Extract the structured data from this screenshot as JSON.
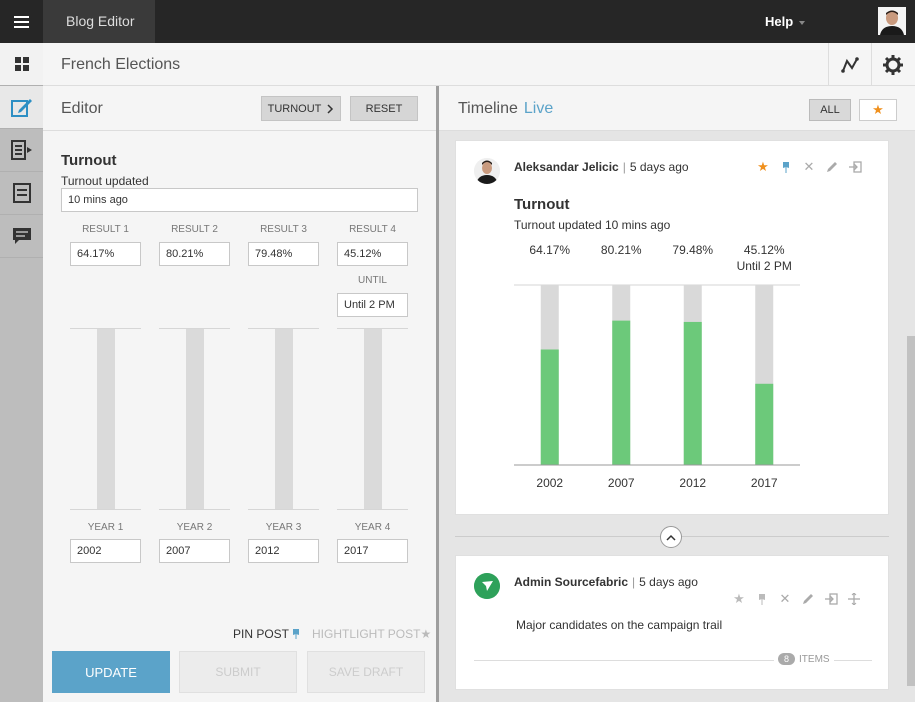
{
  "app": {
    "title": "Blog Editor",
    "help_label": "Help"
  },
  "blog": {
    "title": "French Elections"
  },
  "editor": {
    "title": "Editor",
    "turnout_button": "TURNOUT",
    "reset_button": "RESET",
    "section_title": "Turnout",
    "subtitle": "Turnout updated",
    "time_value": "10 mins ago",
    "results": [
      {
        "label": "RESULT 1",
        "value": "64.17%"
      },
      {
        "label": "RESULT 2",
        "value": "80.21%"
      },
      {
        "label": "RESULT 3",
        "value": "79.48%"
      },
      {
        "label": "RESULT 4",
        "value": "45.12%"
      }
    ],
    "until_label": "UNTIL",
    "until_value": "Until 2 PM",
    "years": [
      {
        "label": "YEAR 1",
        "value": "2002"
      },
      {
        "label": "YEAR 2",
        "value": "2007"
      },
      {
        "label": "YEAR 3",
        "value": "2012"
      },
      {
        "label": "YEAR 4",
        "value": "2017"
      }
    ],
    "pin_label": "PIN POST",
    "highlight_label": "HIGHTLIGHT POST",
    "update_button": "UPDATE",
    "submit_button": "SUBMIT",
    "save_draft_button": "SAVE DRAFT"
  },
  "timeline": {
    "title": "Timeline",
    "live_label": "Live",
    "filter_all": "ALL",
    "posts": [
      {
        "author": "Aleksandar Jelicic",
        "time": "5 days ago",
        "title": "Turnout",
        "subtitle": "Turnout updated 10 mins ago"
      },
      {
        "author": "Admin Sourcefabric",
        "time": "5 days ago",
        "text": "Major candidates on the campaign trail",
        "items_count": "8",
        "items_label": "ITEMS"
      }
    ]
  },
  "chart_data": {
    "type": "bar",
    "categories": [
      "2002",
      "2007",
      "2012",
      "2017"
    ],
    "values": [
      64.17,
      80.21,
      79.48,
      45.12
    ],
    "value_labels": [
      "64.17%",
      "80.21%",
      "79.48%",
      "45.12%"
    ],
    "extra_label": "Until 2 PM",
    "ylim": [
      0,
      100
    ],
    "colors": {
      "fill": "#6cc97a",
      "track": "#d9d9d9"
    }
  },
  "colors": {
    "accent": "#5ba3c9",
    "star": "#f0901d",
    "pin": "#5ba3c9",
    "bar": "#6cc97a"
  }
}
